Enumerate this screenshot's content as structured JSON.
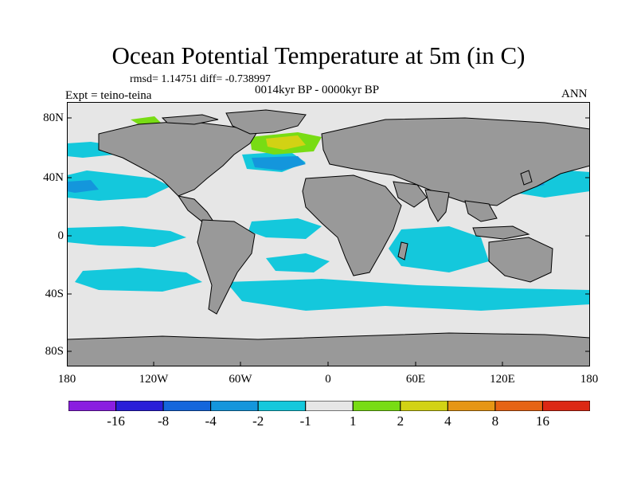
{
  "title": "Ocean Potential Temperature at 5m (in C)",
  "stats": "rmsd= 1.14751 diff= -0.738997",
  "experiment": "Expt = teino-teina",
  "period": "0014kyr BP - 0000kyr BP",
  "season": "ANN",
  "lat_labels": [
    "80N",
    "40N",
    "0",
    "40S",
    "80S"
  ],
  "lon_labels": [
    "180",
    "120W",
    "60W",
    "0",
    "60E",
    "120E",
    "180"
  ],
  "colorbar": {
    "labels": [
      "-16",
      "-8",
      "-4",
      "-2",
      "-1",
      "1",
      "2",
      "4",
      "8",
      "16"
    ],
    "colors": [
      "#8a1ee0",
      "#2a1ed8",
      "#1466dc",
      "#1496dc",
      "#14c8dc",
      "#e6e6e6",
      "#78dc14",
      "#d2d214",
      "#e69614",
      "#e66414",
      "#dc2814"
    ]
  },
  "map_colors": {
    "ocean_neutral": "#e6e6e6",
    "land": "#999999",
    "cool_light": "#14c8dc",
    "cool_mid": "#1496dc",
    "cool_strong": "#1466dc",
    "warm_light": "#78dc14",
    "warm_mid": "#d2d214"
  }
}
